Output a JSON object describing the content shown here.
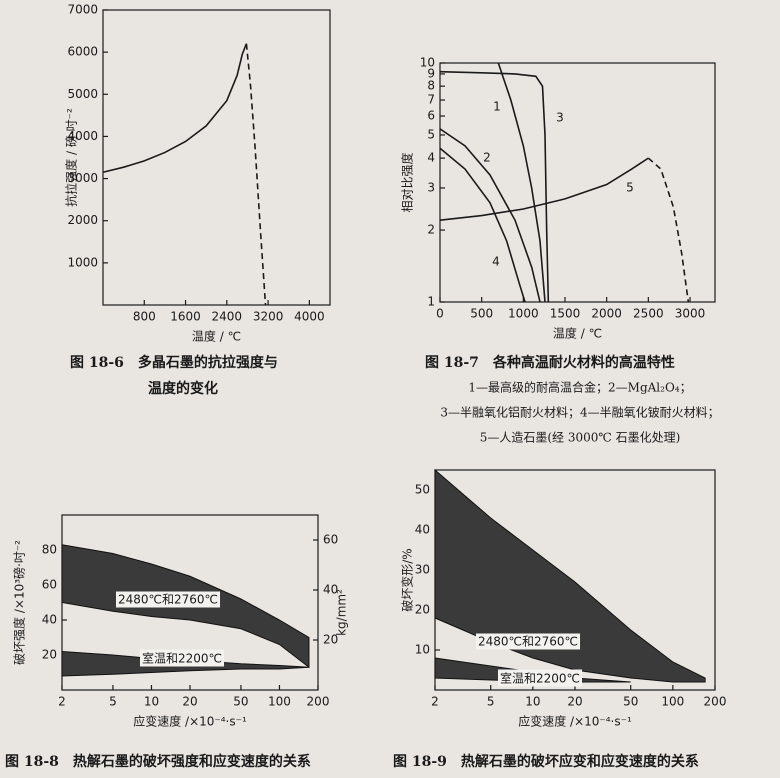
{
  "chart_data": [
    {
      "type": "line",
      "caption": [
        "图 18-6　多晶石墨的抗拉强度与",
        "温度的变化"
      ],
      "x_label": "温度 / ℃",
      "y_label": "抗拉强度 / 磅·吋⁻²",
      "xlim": [
        0,
        4400
      ],
      "xticks": [
        800,
        1600,
        2400,
        3200,
        4000
      ],
      "ylim": [
        0,
        7000
      ],
      "yticks": [
        1000,
        2000,
        3000,
        4000,
        5000,
        6000,
        7000
      ],
      "series": [
        {
          "color": "#1a1a1a",
          "dashed": false,
          "x": [
            0,
            400,
            800,
            1200,
            1600,
            2000,
            2400,
            2600,
            2700,
            2780
          ],
          "values": [
            3150,
            3270,
            3420,
            3620,
            3880,
            4250,
            4850,
            5450,
            5950,
            6200
          ]
        },
        {
          "color": "#1a1a1a",
          "dashed": true,
          "x": [
            2780,
            2860,
            2950,
            3050,
            3150
          ],
          "values": [
            6200,
            5200,
            3700,
            1800,
            0
          ]
        }
      ]
    },
    {
      "type": "line",
      "log_y": true,
      "caption": [
        "图 18-7　各种高温耐火材料的高温特性"
      ],
      "notes": [
        "1—最高级的耐高温合金；2—MgAl₂O₄；",
        "3—半融氧化铝耐火材料；4—半融氧化铍耐火材料；",
        "5—人造石墨(经 3000℃ 石墨化处理)"
      ],
      "x_label": "温度 / ℃",
      "y_label": "相对比强度",
      "xlim": [
        0,
        3300
      ],
      "xticks": [
        0,
        500,
        1000,
        1500,
        2000,
        2500,
        3000
      ],
      "ylim": [
        1,
        10
      ],
      "yticks": [
        1,
        2,
        3,
        4,
        5,
        6,
        7,
        8,
        9,
        10
      ],
      "series": [
        {
          "label": "1",
          "color": "#1a1a1a",
          "dashed": false,
          "x": [
            700,
            850,
            1000,
            1100,
            1200,
            1260
          ],
          "values": [
            10,
            7,
            4.5,
            3,
            1.8,
            1
          ]
        },
        {
          "label": "2",
          "color": "#1a1a1a",
          "dashed": false,
          "x": [
            0,
            300,
            600,
            900,
            1100,
            1200
          ],
          "values": [
            5.3,
            4.5,
            3.4,
            2.2,
            1.4,
            1
          ]
        },
        {
          "label": "3",
          "color": "#1a1a1a",
          "dashed": false,
          "x": [
            0,
            500,
            900,
            1150,
            1230,
            1260,
            1280,
            1300
          ],
          "values": [
            9.2,
            9.1,
            9.0,
            8.8,
            8,
            5,
            2,
            1
          ]
        },
        {
          "label": "4",
          "color": "#1a1a1a",
          "dashed": false,
          "x": [
            0,
            300,
            600,
            800,
            950,
            1020
          ],
          "values": [
            4.4,
            3.6,
            2.6,
            1.8,
            1.2,
            1
          ]
        },
        {
          "label": "5",
          "color": "#1a1a1a",
          "dashed": false,
          "x": [
            0,
            500,
            1000,
            1500,
            2000,
            2300,
            2500
          ],
          "values": [
            2.2,
            2.3,
            2.45,
            2.7,
            3.1,
            3.6,
            4.0
          ]
        },
        {
          "color": "#1a1a1a",
          "dashed": true,
          "x": [
            2500,
            2650,
            2800,
            2900,
            2980
          ],
          "values": [
            4.0,
            3.6,
            2.5,
            1.6,
            1
          ]
        }
      ]
    },
    {
      "type": "band",
      "log_x": true,
      "caption": [
        "图 18-8　热解石墨的破坏强度和应变速度的关系"
      ],
      "x_label": "应变速度 /×10⁻⁴·s⁻¹",
      "y_label": "破坏强度 /×10³磅·吋⁻²",
      "y2_label": "kg/mm²",
      "xlim": [
        2,
        200
      ],
      "xticks": [
        2,
        5,
        10,
        20,
        50,
        100,
        200
      ],
      "ylim": [
        0,
        100
      ],
      "yticks": [
        20,
        40,
        60,
        80
      ],
      "y2lim": [
        0,
        70
      ],
      "y2ticks": [
        20,
        40,
        60
      ],
      "series": [
        {
          "name": "2480℃和2760℃",
          "color": "#3a3a3a",
          "x": [
            2,
            5,
            10,
            20,
            50,
            100,
            170
          ],
          "upper": [
            83,
            78,
            72,
            65,
            52,
            40,
            30
          ],
          "lower": [
            50,
            45,
            42,
            40,
            35,
            26,
            13
          ]
        },
        {
          "name": "室温和2200℃",
          "color": "#3a3a3a",
          "x": [
            2,
            5,
            10,
            20,
            50,
            100,
            170
          ],
          "upper": [
            22,
            20,
            18,
            17,
            15,
            14,
            13
          ],
          "lower": [
            8,
            9,
            10,
            11,
            12,
            12,
            13
          ]
        }
      ]
    },
    {
      "type": "band",
      "log_x": true,
      "caption": [
        "图 18-9　热解石墨的破坏应变和应变速度的关系"
      ],
      "x_label": "应变速度 /×10⁻⁴·s⁻¹",
      "y_label": "破坏变形/%",
      "xlim": [
        2,
        200
      ],
      "xticks": [
        2,
        5,
        10,
        20,
        50,
        100,
        200
      ],
      "ylim": [
        0,
        55
      ],
      "yticks": [
        10,
        20,
        30,
        40,
        50
      ],
      "series": [
        {
          "name": "2480℃和2760℃",
          "color": "#3a3a3a",
          "x": [
            2,
            5,
            10,
            20,
            50,
            100,
            170
          ],
          "upper": [
            55,
            43,
            35,
            27,
            15,
            7,
            3
          ],
          "lower": [
            18,
            12,
            8,
            5,
            3,
            2,
            2
          ]
        },
        {
          "name": "室温和2200℃",
          "color": "#3a3a3a",
          "x": [
            2,
            5,
            10,
            20,
            50
          ],
          "upper": [
            8,
            6,
            4.5,
            3,
            2
          ],
          "lower": [
            3,
            2.5,
            2.2,
            2,
            2
          ]
        }
      ]
    }
  ]
}
